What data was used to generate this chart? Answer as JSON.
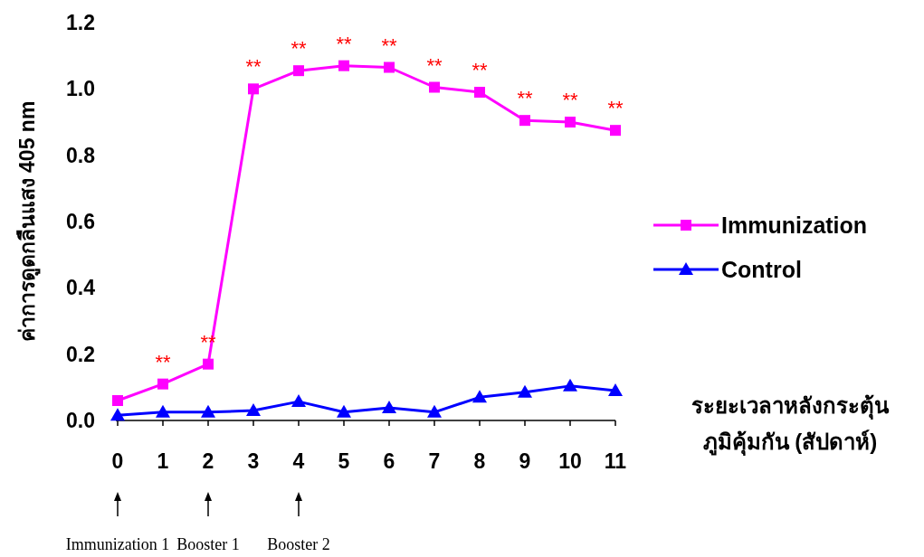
{
  "chart_data": {
    "type": "line",
    "ylabel": "ค่าการดูดกลืนแสง 405 nm",
    "xlabel": "ระยะเวลาหลังกระตุ้น\nภูมิคุ้มกัน (สัปดาห์)",
    "x": [
      0,
      1,
      2,
      3,
      4,
      5,
      6,
      7,
      8,
      9,
      10,
      11
    ],
    "xlim": [
      0,
      11
    ],
    "xticks": [
      0,
      1,
      2,
      3,
      4,
      5,
      6,
      7,
      8,
      9,
      10,
      11
    ],
    "ylim": [
      0,
      1.2
    ],
    "yticks": [
      {
        "value": 0,
        "label": "0.0"
      },
      0.2,
      0.4,
      0.6,
      0.8,
      {
        "value": 1,
        "label": "1.0"
      },
      1.2
    ],
    "series": [
      {
        "name": "Immunization",
        "color": "#ff00ff",
        "marker": "square",
        "values": [
          0.06,
          0.11,
          0.17,
          1.0,
          1.055,
          1.07,
          1.065,
          1.005,
          0.99,
          0.905,
          0.9,
          0.875
        ]
      },
      {
        "name": "Control",
        "color": "#0000ff",
        "marker": "triangle",
        "values": [
          0.016,
          0.025,
          0.025,
          0.03,
          0.057,
          0.025,
          0.038,
          0.025,
          0.07,
          0.085,
          0.104,
          0.09
        ]
      }
    ],
    "annotations": [
      {
        "text": "**",
        "x": 1,
        "y": 0.11
      },
      {
        "text": "**",
        "x": 2,
        "y": 0.17
      },
      {
        "text": "**",
        "x": 3,
        "y": 1.0
      },
      {
        "text": "**",
        "x": 4,
        "y": 1.055
      },
      {
        "text": "**",
        "x": 5,
        "y": 1.07
      },
      {
        "text": "**",
        "x": 6,
        "y": 1.065
      },
      {
        "text": "**",
        "x": 7,
        "y": 1.005
      },
      {
        "text": "**",
        "x": 8,
        "y": 0.99
      },
      {
        "text": "**",
        "x": 9,
        "y": 0.905
      },
      {
        "text": "**",
        "x": 10,
        "y": 0.9
      },
      {
        "text": "**",
        "x": 11,
        "y": 0.875
      },
      "Immunization 1",
      "Booster 1",
      "Booster 2"
    ],
    "grid": false,
    "legend": "right"
  }
}
